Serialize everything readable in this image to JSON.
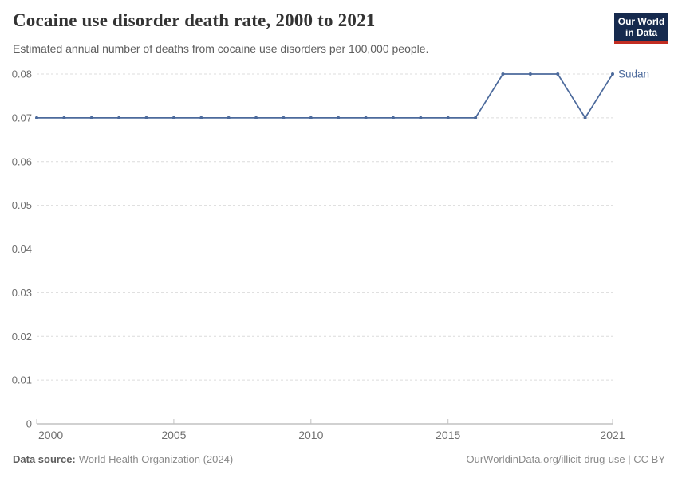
{
  "header": {
    "title": "Cocaine use disorder death rate, 2000 to 2021",
    "subtitle": "Estimated annual number of deaths from cocaine use disorders per 100,000 people.",
    "logo": {
      "line1": "Our World",
      "line2": "in Data",
      "bg_color": "#162a4e",
      "accent_color": "#c22d22"
    }
  },
  "chart_data": {
    "type": "line",
    "title": "Cocaine use disorder death rate, 2000 to 2021",
    "xlabel": "",
    "ylabel": "",
    "x": [
      2000,
      2001,
      2002,
      2003,
      2004,
      2005,
      2006,
      2007,
      2008,
      2009,
      2010,
      2011,
      2012,
      2013,
      2014,
      2015,
      2016,
      2017,
      2018,
      2019,
      2020,
      2021
    ],
    "series": [
      {
        "name": "Sudan",
        "color": "#4c6a9c",
        "values": [
          0.07,
          0.07,
          0.07,
          0.07,
          0.07,
          0.07,
          0.07,
          0.07,
          0.07,
          0.07,
          0.07,
          0.07,
          0.07,
          0.07,
          0.07,
          0.07,
          0.07,
          0.08,
          0.08,
          0.08,
          0.07,
          0.08
        ]
      }
    ],
    "ylim": [
      0,
      0.08
    ],
    "yticks": [
      0,
      0.01,
      0.02,
      0.03,
      0.04,
      0.05,
      0.06,
      0.07,
      0.08
    ],
    "xticks": [
      2000,
      2005,
      2010,
      2015,
      2021
    ],
    "grid": "horizontal-dashed",
    "legend_position": "end-of-line-label"
  },
  "footer": {
    "source_label": "Data source:",
    "source_text": "World Health Organization (2024)",
    "credit": "OurWorldinData.org/illicit-drug-use | CC BY"
  }
}
